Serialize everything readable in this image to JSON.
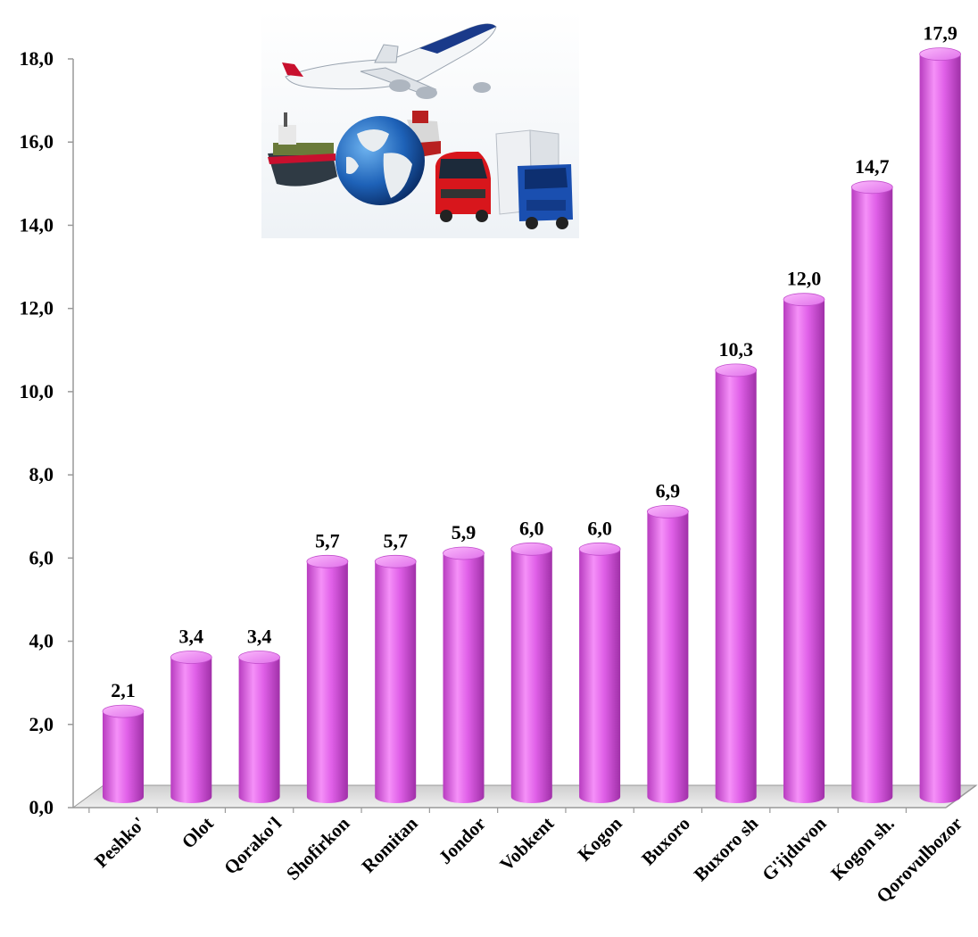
{
  "chart_data": {
    "type": "bar",
    "style": "3d-cylinder",
    "bar_color": "#e060e8",
    "categories": [
      "Peshko'",
      "Olot",
      "Qorako'l",
      "Shofirkon",
      "Romitan",
      "Jondor",
      "Vobkent",
      "Kogon",
      "Buxoro",
      "Buxoro sh",
      "G'ijduvon",
      "Kogon sh.",
      "Qorovulbozor"
    ],
    "values": [
      2.1,
      3.4,
      3.4,
      5.7,
      5.7,
      5.9,
      6.0,
      6.0,
      6.9,
      10.3,
      12.0,
      14.7,
      17.9
    ],
    "value_labels": [
      "2,1",
      "3,4",
      "3,4",
      "5,7",
      "5,7",
      "5,9",
      "6,0",
      "6,0",
      "6,9",
      "10,3",
      "12,0",
      "14,7",
      "17,9"
    ],
    "yticks": [
      "0,0",
      "2,0",
      "4,0",
      "6,0",
      "8,0",
      "10,0",
      "12,0",
      "14,0",
      "16,0",
      "18,0"
    ],
    "ylim": [
      0,
      18
    ],
    "grid": false,
    "legend": "none",
    "decoration": "transport-illustration"
  }
}
